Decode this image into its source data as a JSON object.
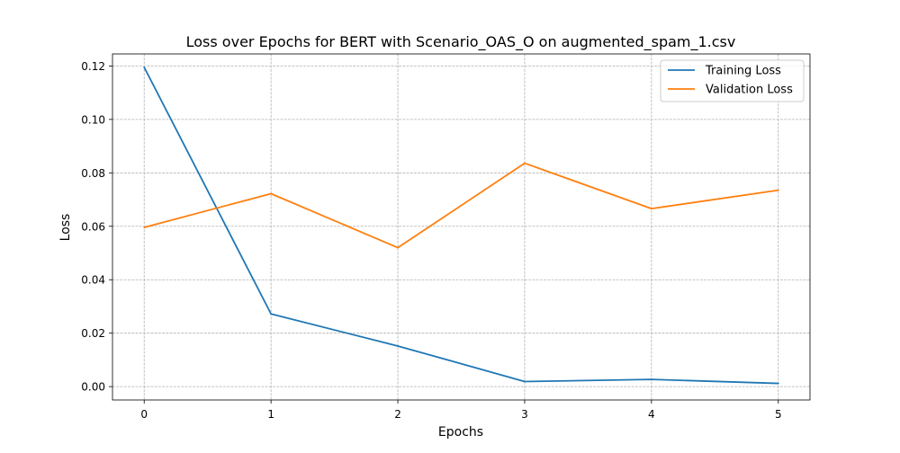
{
  "chart_data": {
    "type": "line",
    "title": "Loss over Epochs for BERT with Scenario_OAS_O on augmented_spam_1.csv",
    "xlabel": "Epochs",
    "ylabel": "Loss",
    "x": [
      0,
      1,
      2,
      3,
      4,
      5
    ],
    "x_ticks": [
      "0",
      "1",
      "2",
      "3",
      "4",
      "5"
    ],
    "y_ticks": [
      "0.00",
      "0.02",
      "0.04",
      "0.06",
      "0.08",
      "0.10",
      "0.12"
    ],
    "xlim": [
      -0.25,
      5.25
    ],
    "ylim": [
      -0.005,
      0.1245
    ],
    "grid": true,
    "legend_position": "top-right",
    "series": [
      {
        "name": "Training Loss",
        "color": "#1f77b4",
        "values": [
          0.1195,
          0.0272,
          0.0152,
          0.0019,
          0.0027,
          0.0012
        ]
      },
      {
        "name": "Validation Loss",
        "color": "#ff7f0e",
        "values": [
          0.0596,
          0.0722,
          0.052,
          0.0836,
          0.0666,
          0.0735
        ]
      }
    ]
  }
}
